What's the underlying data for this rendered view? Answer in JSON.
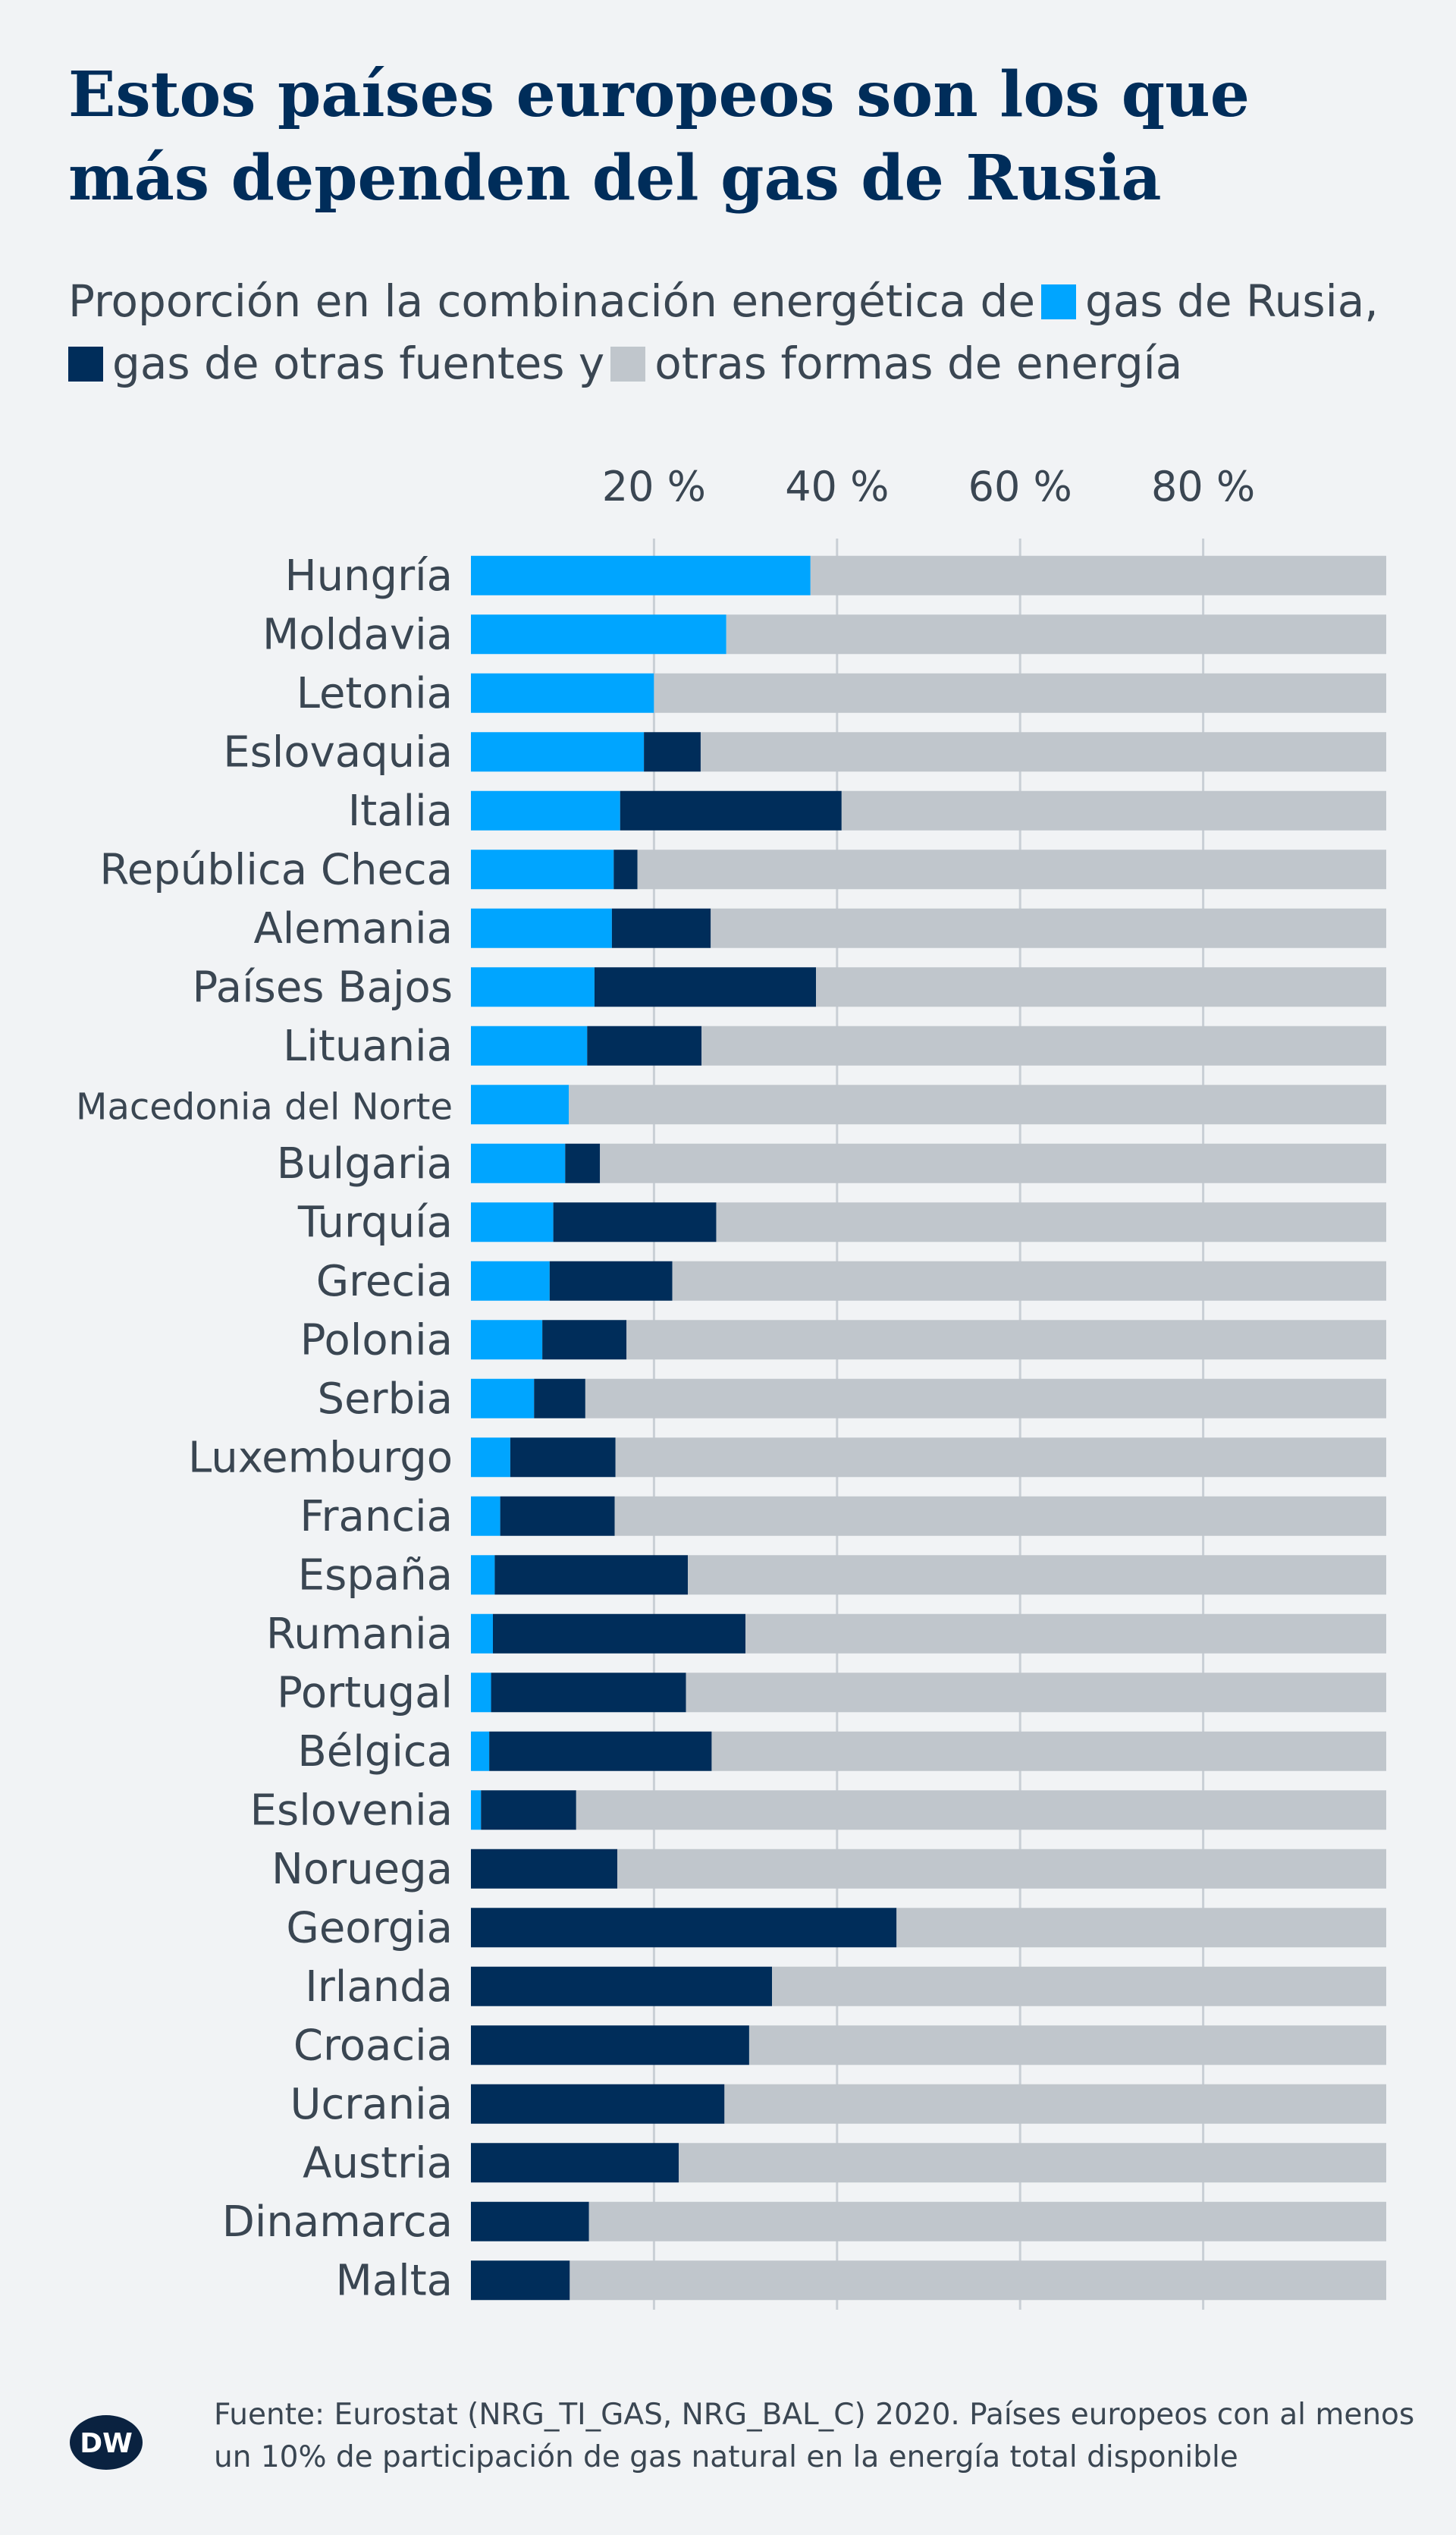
{
  "title": "Estos países europeos son los que más dependen del gas de Rusia",
  "subtitle": {
    "prefix": "Proporción en la combinación energética de",
    "russia": "gas de Rusia,",
    "other": "gas de otras fuentes y",
    "energy": "otras formas de energía"
  },
  "colors": {
    "russia": "#00a5ff",
    "other": "#002d5a",
    "energy": "#c0c6cc",
    "background": "#f1f3f5"
  },
  "logo_text": "DW",
  "source": "Fuente: Eurostat (NRG_TI_GAS, NRG_BAL_C) 2020. Países europeos con al menos un 10% de participación de gas natural en la energía total disponible",
  "chart_data": {
    "type": "bar",
    "orientation": "horizontal",
    "stacked": true,
    "xlim": [
      0,
      100
    ],
    "xticks": [
      20,
      40,
      60,
      80
    ],
    "xtick_labels": [
      "20 %",
      "40 %",
      "60 %",
      "80 %"
    ],
    "grid": true,
    "categories": [
      "Hungría",
      "Moldavia",
      "Letonia",
      "Eslovaquia",
      "Italia",
      "República Checa",
      "Alemania",
      "Países Bajos",
      "Lituania",
      "Macedonia del Norte",
      "Bulgaria",
      "Turquía",
      "Grecia",
      "Polonia",
      "Serbia",
      "Luxemburgo",
      "Francia",
      "España",
      "Rumania",
      "Portugal",
      "Bélgica",
      "Eslovenia",
      "Noruega",
      "Georgia",
      "Irlanda",
      "Croacia",
      "Ucrania",
      "Austria",
      "Dinamarca",
      "Malta"
    ],
    "series": [
      {
        "name": "gas de Rusia",
        "color": "#00a5ff",
        "values": [
          37.1,
          27.9,
          20.0,
          18.9,
          16.3,
          15.6,
          15.4,
          13.5,
          12.7,
          10.7,
          10.3,
          9.0,
          8.6,
          7.8,
          6.9,
          4.3,
          3.2,
          2.6,
          2.4,
          2.2,
          2.0,
          1.1,
          0,
          0,
          0,
          0,
          0,
          0,
          0,
          0
        ]
      },
      {
        "name": "gas de otras fuentes",
        "color": "#002d5a",
        "values": [
          0,
          0,
          0,
          6.2,
          24.2,
          2.6,
          10.8,
          24.2,
          12.5,
          0,
          3.8,
          17.8,
          13.4,
          9.2,
          5.6,
          11.5,
          12.5,
          21.1,
          27.6,
          21.3,
          24.3,
          10.4,
          16.0,
          46.5,
          32.9,
          30.4,
          27.7,
          22.7,
          12.9,
          10.8
        ]
      },
      {
        "name": "otras formas de energía",
        "color": "#c0c6cc",
        "values": [
          62.9,
          72.1,
          80.0,
          74.9,
          59.5,
          81.8,
          73.8,
          62.3,
          74.8,
          89.3,
          85.9,
          73.2,
          78.0,
          83.0,
          87.5,
          84.2,
          84.3,
          76.3,
          70.0,
          76.5,
          73.7,
          88.5,
          84.0,
          53.5,
          67.1,
          69.6,
          72.3,
          77.3,
          87.1,
          89.2
        ]
      }
    ]
  }
}
